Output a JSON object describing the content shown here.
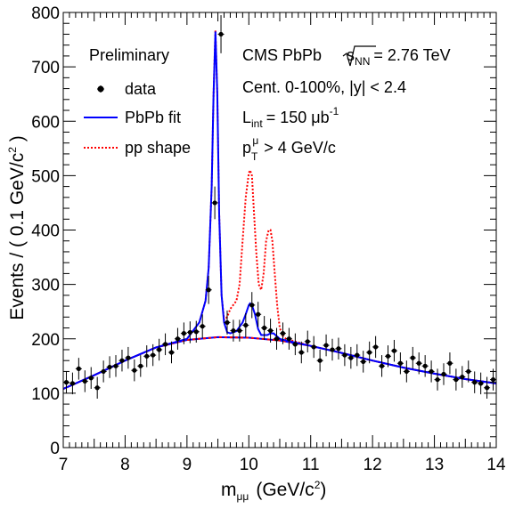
{
  "chart_data": {
    "type": "line",
    "title": "",
    "xlabel": "m",
    "xlabel_sub": "μμ",
    "xlabel_unit": "(GeV/c",
    "xlabel_unit_sup": "2",
    "xlabel_unit_close": ")",
    "ylabel": "Events / ( 0.1 GeV/c",
    "ylabel_sup": "2",
    "ylabel_close": " )",
    "xlim": [
      7,
      14
    ],
    "ylim": [
      0,
      800
    ],
    "x_ticks": [
      7,
      8,
      9,
      10,
      11,
      12,
      13,
      14
    ],
    "y_ticks": [
      0,
      100,
      200,
      300,
      400,
      500,
      600,
      700,
      800
    ],
    "annotations": {
      "preliminary": "Preliminary",
      "cms_label": "CMS PbPb",
      "sqrt_label": "s",
      "sqrt_sub": "NN",
      "energy": "= 2.76 TeV",
      "centrality": "Cent. 0-100%, |y| < 2.4",
      "lint_main": "L",
      "lint_sub": "int",
      "lint_value": "= 150 μb",
      "lint_sup": "-1",
      "pt_main": "p",
      "pt_sub": "T",
      "pt_sup": "μ",
      "pt_value": "> 4 GeV/c"
    },
    "legend": [
      {
        "name": "data",
        "style": "marker",
        "color": "#000000"
      },
      {
        "name": "PbPb fit",
        "style": "solid",
        "color": "#0000ff"
      },
      {
        "name": "pp shape",
        "style": "dotted",
        "color": "#ff0000"
      }
    ],
    "series": [
      {
        "name": "data",
        "type": "scatter",
        "x": [
          7.05,
          7.15,
          7.25,
          7.35,
          7.45,
          7.55,
          7.65,
          7.75,
          7.85,
          7.95,
          8.05,
          8.15,
          8.25,
          8.35,
          8.45,
          8.55,
          8.65,
          8.75,
          8.85,
          8.95,
          9.05,
          9.15,
          9.25,
          9.35,
          9.45,
          9.55,
          9.65,
          9.75,
          9.85,
          9.95,
          10.05,
          10.15,
          10.25,
          10.35,
          10.45,
          10.55,
          10.65,
          10.75,
          10.85,
          10.95,
          11.05,
          11.15,
          11.25,
          11.35,
          11.45,
          11.55,
          11.65,
          11.75,
          11.85,
          11.95,
          12.05,
          12.15,
          12.25,
          12.35,
          12.45,
          12.55,
          12.65,
          12.75,
          12.85,
          12.95,
          13.05,
          13.15,
          13.25,
          13.35,
          13.45,
          13.55,
          13.65,
          13.75,
          13.85,
          13.95
        ],
        "y": [
          120,
          118,
          145,
          122,
          128,
          110,
          140,
          148,
          150,
          160,
          165,
          142,
          150,
          168,
          170,
          180,
          190,
          175,
          200,
          210,
          212,
          213,
          223,
          290,
          450,
          760,
          230,
          215,
          215,
          225,
          262,
          245,
          220,
          215,
          200,
          210,
          200,
          190,
          175,
          195,
          185,
          160,
          188,
          180,
          182,
          170,
          165,
          170,
          158,
          175,
          185,
          150,
          168,
          178,
          155,
          140,
          165,
          155,
          150,
          140,
          125,
          135,
          155,
          125,
          130,
          140,
          120,
          118,
          110,
          125
        ],
        "err": [
          20,
          20,
          20,
          20,
          20,
          20,
          20,
          20,
          20,
          20,
          20,
          20,
          20,
          20,
          20,
          20,
          20,
          20,
          20,
          20,
          20,
          20,
          22,
          26,
          30,
          35,
          22,
          20,
          20,
          22,
          24,
          23,
          22,
          22,
          20,
          20,
          20,
          20,
          20,
          20,
          20,
          20,
          20,
          20,
          20,
          20,
          20,
          20,
          20,
          20,
          20,
          20,
          20,
          20,
          20,
          20,
          20,
          20,
          20,
          20,
          20,
          20,
          20,
          20,
          20,
          20,
          20,
          20,
          20,
          20
        ]
      },
      {
        "name": "PbPb fit",
        "type": "line",
        "x": [
          7.0,
          7.5,
          8.0,
          8.5,
          9.0,
          9.2,
          9.3,
          9.35,
          9.4,
          9.43,
          9.46,
          9.49,
          9.52,
          9.56,
          9.6,
          9.65,
          9.7,
          9.8,
          9.9,
          9.95,
          10.0,
          10.02,
          10.05,
          10.1,
          10.15,
          10.2,
          10.3,
          10.35,
          10.4,
          10.5,
          10.6,
          11.0,
          11.5,
          12.0,
          12.5,
          13.0,
          13.5,
          14.0
        ],
        "values": [
          108,
          133,
          160,
          184,
          200,
          230,
          270,
          330,
          480,
          650,
          765,
          650,
          430,
          280,
          230,
          212,
          210,
          214,
          230,
          245,
          262,
          265,
          262,
          245,
          218,
          207,
          207,
          210,
          210,
          200,
          197,
          187,
          174,
          160,
          147,
          136,
          126,
          118
        ]
      },
      {
        "name": "pp shape",
        "type": "line",
        "x": [
          7.0,
          7.5,
          8.0,
          8.5,
          9.0,
          9.2,
          9.3,
          9.35,
          9.4,
          9.43,
          9.46,
          9.49,
          9.52,
          9.56,
          9.6,
          9.65,
          9.7,
          9.8,
          9.85,
          9.9,
          9.95,
          10.0,
          10.02,
          10.05,
          10.08,
          10.12,
          10.16,
          10.2,
          10.24,
          10.28,
          10.32,
          10.35,
          10.38,
          10.42,
          10.46,
          10.5,
          10.55,
          10.6,
          11.0,
          11.5,
          12.0,
          12.5,
          13.0,
          13.5,
          14.0
        ],
        "values": [
          108,
          133,
          160,
          184,
          200,
          230,
          270,
          330,
          480,
          650,
          768,
          650,
          430,
          280,
          235,
          240,
          255,
          270,
          300,
          380,
          460,
          505,
          510,
          500,
          440,
          360,
          300,
          290,
          320,
          380,
          400,
          400,
          380,
          320,
          260,
          220,
          205,
          200,
          187,
          174,
          160,
          147,
          136,
          126,
          118
        ]
      },
      {
        "name": "background",
        "type": "line",
        "x": [
          7.0,
          7.5,
          8.0,
          8.5,
          9.0,
          9.5,
          10.0,
          10.5,
          11.0,
          11.5,
          12.0,
          12.5,
          13.0,
          13.5,
          14.0
        ],
        "values": [
          108,
          133,
          160,
          184,
          198,
          203,
          202,
          197,
          187,
          174,
          160,
          147,
          136,
          126,
          118
        ]
      }
    ]
  }
}
